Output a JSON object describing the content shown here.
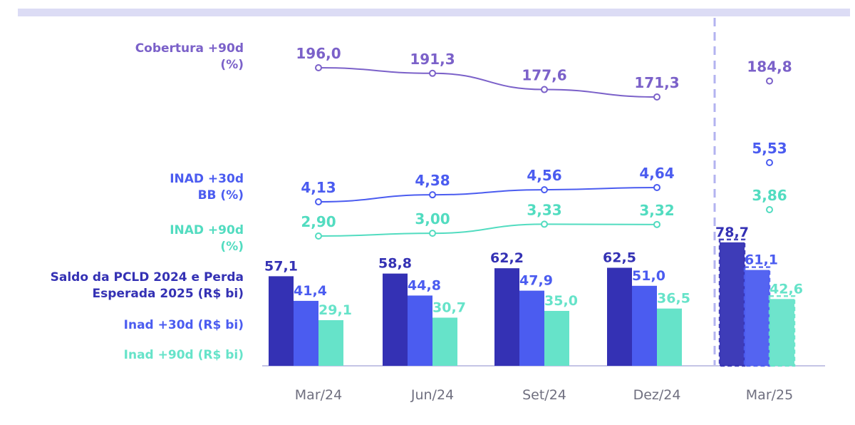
{
  "labels": {
    "cobertura": [
      "Cobertura +90d",
      "(%)"
    ],
    "inad30": [
      "INAD +30d",
      "BB (%)"
    ],
    "inad90": [
      "INAD +90d",
      "(%)"
    ],
    "pcld": [
      "Saldo da PCLD 2024 e Perda",
      "Esperada 2025 (R$ bi)"
    ],
    "inad30bi": "Inad +30d (R$ bi)",
    "inad90bi": "Inad +90d (R$ bi)"
  },
  "colors": {
    "cobertura": "#7b61c9",
    "inad30": "#4b5cf0",
    "inad90": "#52dcc0",
    "pcld": "#3431b4",
    "inad90bar": "#66e3c9",
    "axis": "#c5c5e6",
    "tick": "#6f6f7f",
    "divider": "#b3b3f0"
  },
  "chart_data": {
    "type": "bar+line",
    "categories": [
      "Mar/24",
      "Jun/24",
      "Set/24",
      "Dez/24",
      "Mar/25"
    ],
    "lines": [
      {
        "name": "Cobertura +90d (%)",
        "key": "cobertura",
        "values": [
          "196,0",
          "191,3",
          "177,6",
          "171,3",
          "184,8"
        ],
        "connected_until": 3
      },
      {
        "name": "INAD +30d BB (%)",
        "key": "inad30",
        "values": [
          "4,13",
          "4,38",
          "4,56",
          "4,64",
          "5,53"
        ],
        "connected_until": 3
      },
      {
        "name": "INAD +90d (%)",
        "key": "inad90",
        "values": [
          "2,90",
          "3,00",
          "3,33",
          "3,32",
          "3,86"
        ],
        "connected_until": 3
      }
    ],
    "bar_series": [
      {
        "name": "Saldo da PCLD 2024 e Perda Esperada 2025 (R$ bi)",
        "key": "pcld",
        "values": [
          57.1,
          58.8,
          62.2,
          62.5,
          78.7
        ],
        "labels": [
          "57,1",
          "58,8",
          "62,2",
          "62,5",
          "78,7"
        ]
      },
      {
        "name": "Inad +30d (R$ bi)",
        "key": "inad30",
        "values": [
          41.4,
          44.8,
          47.9,
          51.0,
          61.1
        ],
        "labels": [
          "41,4",
          "44,8",
          "47,9",
          "51,0",
          "61,1"
        ]
      },
      {
        "name": "Inad +90d (R$ bi)",
        "key": "inad90bar",
        "values": [
          29.1,
          30.7,
          35.0,
          36.5,
          42.6
        ],
        "labels": [
          "29,1",
          "30,7",
          "35,0",
          "36,5",
          "42,6"
        ]
      }
    ],
    "highlighted_category": "Mar/25",
    "xlabel": "",
    "ylabel": ""
  }
}
